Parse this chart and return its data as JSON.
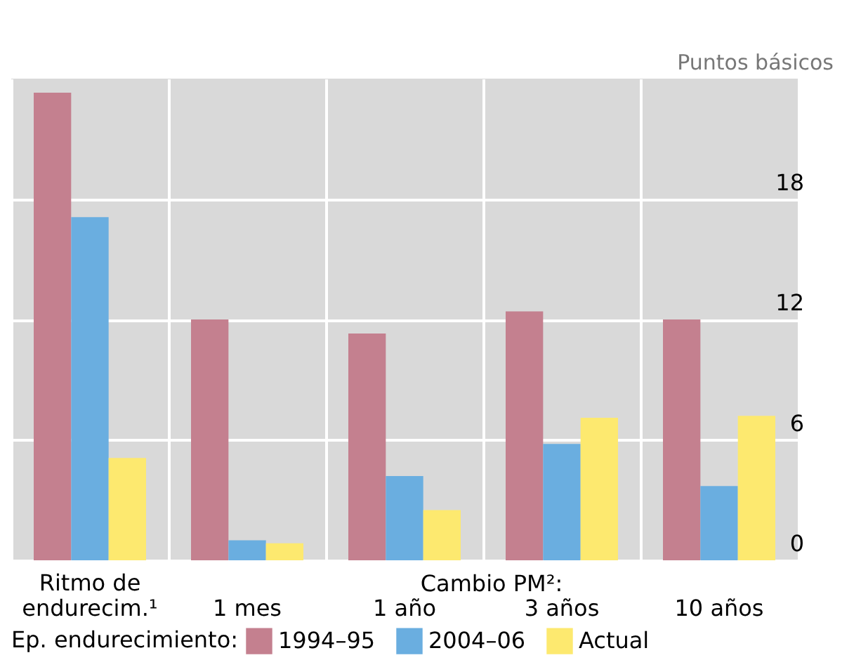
{
  "chart_data": {
    "type": "bar",
    "ylabel": "Puntos básicos",
    "legend_title": "Ep. endurecimiento:",
    "categories": [
      "Ritmo de\nendurecim.¹",
      "1 mes",
      "1 año",
      "3 años",
      "10 años"
    ],
    "series": [
      {
        "name": "1994–95",
        "color": "#c4808f",
        "values": [
          23.3,
          12.0,
          11.3,
          12.4,
          12.0
        ]
      },
      {
        "name": "2004–06",
        "color": "#6aaee0",
        "values": [
          17.1,
          1.0,
          4.2,
          5.8,
          3.7
        ]
      },
      {
        "name": "Actual",
        "color": "#fde96f",
        "values": [
          5.1,
          0.85,
          2.5,
          7.1,
          7.2
        ]
      }
    ],
    "ylim": [
      0,
      24
    ],
    "yticks": [
      0,
      6,
      12,
      18
    ],
    "grid": true,
    "legend": "bottom",
    "annotations": [
      "Cambio PM²:"
    ]
  }
}
